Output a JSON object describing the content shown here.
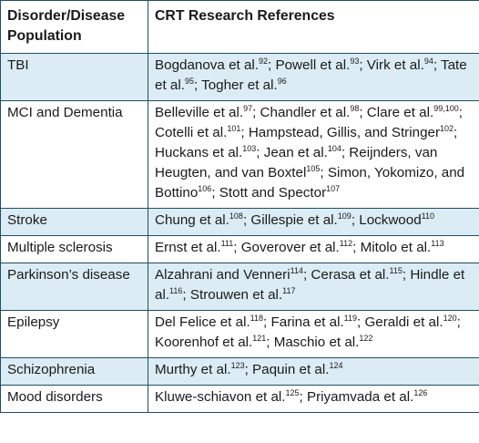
{
  "table": {
    "headers": [
      "Disorder/Disease Population",
      "CRT Research References"
    ],
    "rows": [
      {
        "population": "TBI",
        "references": [
          {
            "t": "Bogdanova et al."
          },
          {
            "s": "92"
          },
          {
            "t": "; Powell et al."
          },
          {
            "s": "93"
          },
          {
            "t": "; Virk et al."
          },
          {
            "s": "94"
          },
          {
            "t": "; Tate et al."
          },
          {
            "s": "95"
          },
          {
            "t": "; Togher et al."
          },
          {
            "s": "96"
          }
        ]
      },
      {
        "population": "MCI and Dementia",
        "references": [
          {
            "t": "Belleville et al."
          },
          {
            "s": "97"
          },
          {
            "t": "; Chandler et al."
          },
          {
            "s": "98"
          },
          {
            "t": "; Clare et al."
          },
          {
            "s": "99,100"
          },
          {
            "t": "; Cotelli et al."
          },
          {
            "s": "101"
          },
          {
            "t": "; Hampstead, Gillis, and Stringer"
          },
          {
            "s": "102"
          },
          {
            "t": "; Huckans et al."
          },
          {
            "s": "103"
          },
          {
            "t": "; Jean et al."
          },
          {
            "s": "104"
          },
          {
            "t": "; Reijnders, van Heugten, and van Boxtel"
          },
          {
            "s": "105"
          },
          {
            "t": "; Simon, Yokomizo, and Bottino"
          },
          {
            "s": "106"
          },
          {
            "t": "; Stott and Spector"
          },
          {
            "s": "107"
          }
        ]
      },
      {
        "population": "Stroke",
        "references": [
          {
            "t": "Chung et al."
          },
          {
            "s": "108"
          },
          {
            "t": "; Gillespie et al."
          },
          {
            "s": "109"
          },
          {
            "t": "; Lockwood"
          },
          {
            "s": "110"
          }
        ]
      },
      {
        "population": "Multiple sclerosis",
        "references": [
          {
            "t": "Ernst et al."
          },
          {
            "s": "111"
          },
          {
            "t": "; Goverover et al."
          },
          {
            "s": "112"
          },
          {
            "t": "; Mitolo et al."
          },
          {
            "s": "113"
          }
        ]
      },
      {
        "population": "Parkinson’s disease",
        "references": [
          {
            "t": "Alzahrani and Venneri"
          },
          {
            "s": "114"
          },
          {
            "t": "; Cerasa et al."
          },
          {
            "s": "115"
          },
          {
            "t": "; Hindle et al."
          },
          {
            "s": "116"
          },
          {
            "t": "; Strouwen et al."
          },
          {
            "s": "117"
          }
        ]
      },
      {
        "population": "Epilepsy",
        "references": [
          {
            "t": "Del Felice et al."
          },
          {
            "s": "118"
          },
          {
            "t": "; Farina et al."
          },
          {
            "s": "119"
          },
          {
            "t": "; Geraldi et al."
          },
          {
            "s": "120"
          },
          {
            "t": "; Koorenhof et al."
          },
          {
            "s": "121"
          },
          {
            "t": "; Maschio et al."
          },
          {
            "s": "122"
          }
        ]
      },
      {
        "population": "Schizophrenia",
        "references": [
          {
            "t": "Murthy et al."
          },
          {
            "s": "123"
          },
          {
            "t": "; Paquin et al."
          },
          {
            "s": "124"
          }
        ]
      },
      {
        "population": "Mood disorders",
        "references": [
          {
            "t": "Kluwe-schiavon et al."
          },
          {
            "s": "125"
          },
          {
            "t": "; Priyamvada et al."
          },
          {
            "s": "126"
          }
        ]
      }
    ]
  },
  "colors": {
    "border": "#1f4f66",
    "shaded_row": "#dcecf4"
  }
}
